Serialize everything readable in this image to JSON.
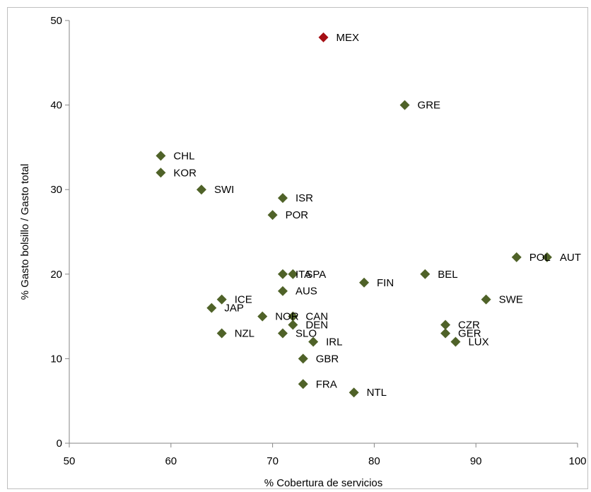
{
  "chart_data": {
    "type": "scatter",
    "title": "",
    "xlabel": "% Cobertura de servicios",
    "ylabel": "% Gasto bolsillo / Gasto total",
    "xlim": [
      50,
      100
    ],
    "ylim": [
      0,
      50
    ],
    "x_ticks": [
      50,
      60,
      70,
      80,
      90,
      100
    ],
    "y_ticks": [
      0,
      10,
      20,
      30,
      40,
      50
    ],
    "grid": false,
    "legend": "none",
    "colors": {
      "default_marker": "#4f6228",
      "highlight_marker": "#a50f15",
      "axis": "#868686"
    },
    "points": [
      {
        "label": "MEX",
        "x": 75,
        "y": 48,
        "highlight": true
      },
      {
        "label": "GRE",
        "x": 83,
        "y": 40
      },
      {
        "label": "CHL",
        "x": 59,
        "y": 34
      },
      {
        "label": "KOR",
        "x": 59,
        "y": 32
      },
      {
        "label": "SWI",
        "x": 63,
        "y": 30
      },
      {
        "label": "ISR",
        "x": 71,
        "y": 29
      },
      {
        "label": "POR",
        "x": 70,
        "y": 27
      },
      {
        "label": "POL",
        "x": 94,
        "y": 22
      },
      {
        "label": "AUT",
        "x": 97,
        "y": 22
      },
      {
        "label": "ITA",
        "x": 71,
        "y": 20
      },
      {
        "label": "SPA",
        "x": 72,
        "y": 20
      },
      {
        "label": "BEL",
        "x": 85,
        "y": 20
      },
      {
        "label": "FIN",
        "x": 79,
        "y": 19
      },
      {
        "label": "AUS",
        "x": 71,
        "y": 18
      },
      {
        "label": "ICE",
        "x": 65,
        "y": 17
      },
      {
        "label": "SWE",
        "x": 91,
        "y": 17
      },
      {
        "label": "JAP",
        "x": 64,
        "y": 16
      },
      {
        "label": "NOR",
        "x": 69,
        "y": 15
      },
      {
        "label": "CAN",
        "x": 72,
        "y": 15
      },
      {
        "label": "DEN",
        "x": 72,
        "y": 14
      },
      {
        "label": "CZR",
        "x": 87,
        "y": 14
      },
      {
        "label": "NZL",
        "x": 65,
        "y": 13
      },
      {
        "label": "SLO",
        "x": 71,
        "y": 13
      },
      {
        "label": "GER",
        "x": 87,
        "y": 13
      },
      {
        "label": "IRL",
        "x": 74,
        "y": 12
      },
      {
        "label": "LUX",
        "x": 88,
        "y": 12
      },
      {
        "label": "GBR",
        "x": 73,
        "y": 10
      },
      {
        "label": "FRA",
        "x": 73,
        "y": 7
      },
      {
        "label": "NTL",
        "x": 78,
        "y": 6
      }
    ]
  }
}
